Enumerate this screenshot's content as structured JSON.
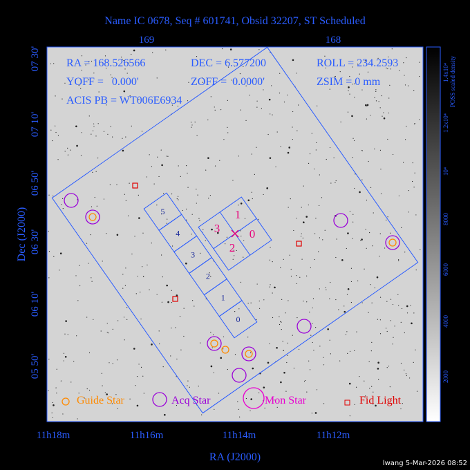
{
  "title": "Name IC 0678, Seq # 601741, Obsid 32207, ST Scheduled",
  "top_axis": {
    "ticks": [
      "169",
      "168"
    ]
  },
  "info": [
    "RA = 168.526566",
    "DEC = 6.577200",
    "ROLL = 234.2593",
    "YOFF =   0.000'",
    "ZOFF =  0.0000'",
    "ZSIM = 0 mm",
    "ACIS PB = WT006E6934"
  ],
  "y_axis": {
    "label": "Dec (J2000)",
    "ticks": [
      "07 30'",
      "07 10'",
      "06 50'",
      "06 30'",
      "06 10'",
      "05 50'"
    ]
  },
  "x_axis": {
    "label": "RA (J2000)",
    "ticks": [
      "11h18m",
      "11h16m",
      "11h14m",
      "11h12m"
    ]
  },
  "colorbar": {
    "title": "POSS scaled density",
    "ticks": [
      "2000",
      "4000",
      "6000",
      "8000",
      "10⁴",
      "1.2x10⁴",
      "1.4x10⁴"
    ]
  },
  "ccd_labels": [
    "0",
    "1",
    "2",
    "3",
    "4",
    "5"
  ],
  "iarray_labels": [
    "1",
    "3",
    "0",
    "2"
  ],
  "legend": [
    "Guide Star",
    "Acq Star",
    "Mon Star",
    "Fid Light"
  ],
  "footer": "lwang  5-Mar-2026 08:52"
}
